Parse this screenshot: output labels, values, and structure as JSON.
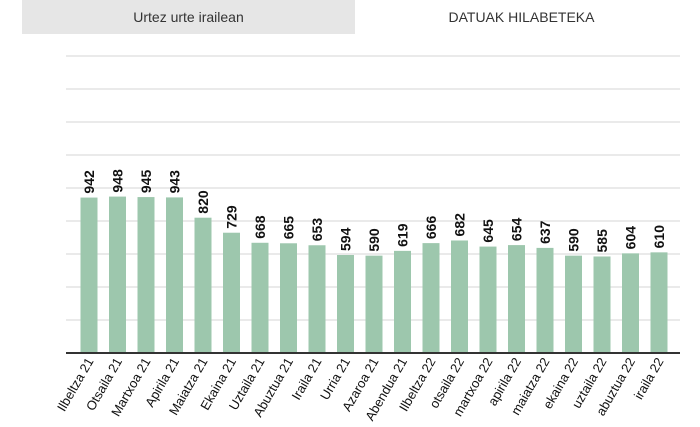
{
  "tabs": {
    "annual": "Urtez urte irailean",
    "monthly": "DATUAK HILABETEKA"
  },
  "colors": {
    "bar": "#9dc7ad",
    "grid": "#d6d6d6",
    "axis": "#333333",
    "tab_inactive_bg": "#e6e6e6"
  },
  "chart_data": {
    "type": "bar",
    "categories": [
      "Ilbeltza 21",
      "Otsaila 21",
      "Martxoa 21",
      "Apirila 21",
      "Maiatza 21",
      "Ekaina 21",
      "Uztaila 21",
      "Abuztua 21",
      "Iraila 21",
      "Urria 21",
      "Azaroa 21",
      "Abendua 21",
      "Ilbeltza 22",
      "otsaila 22",
      "martxoa 22",
      "apirila 22",
      "maiatza 22",
      "ekaina 22",
      "uztaila 22",
      "abuztua 22",
      "iraila 22"
    ],
    "values": [
      942,
      948,
      945,
      943,
      820,
      729,
      668,
      665,
      653,
      594,
      590,
      619,
      666,
      682,
      645,
      654,
      637,
      590,
      585,
      604,
      610
    ],
    "ylim": [
      0,
      1800
    ],
    "grid": true,
    "title": "",
    "xlabel": "",
    "ylabel": ""
  }
}
